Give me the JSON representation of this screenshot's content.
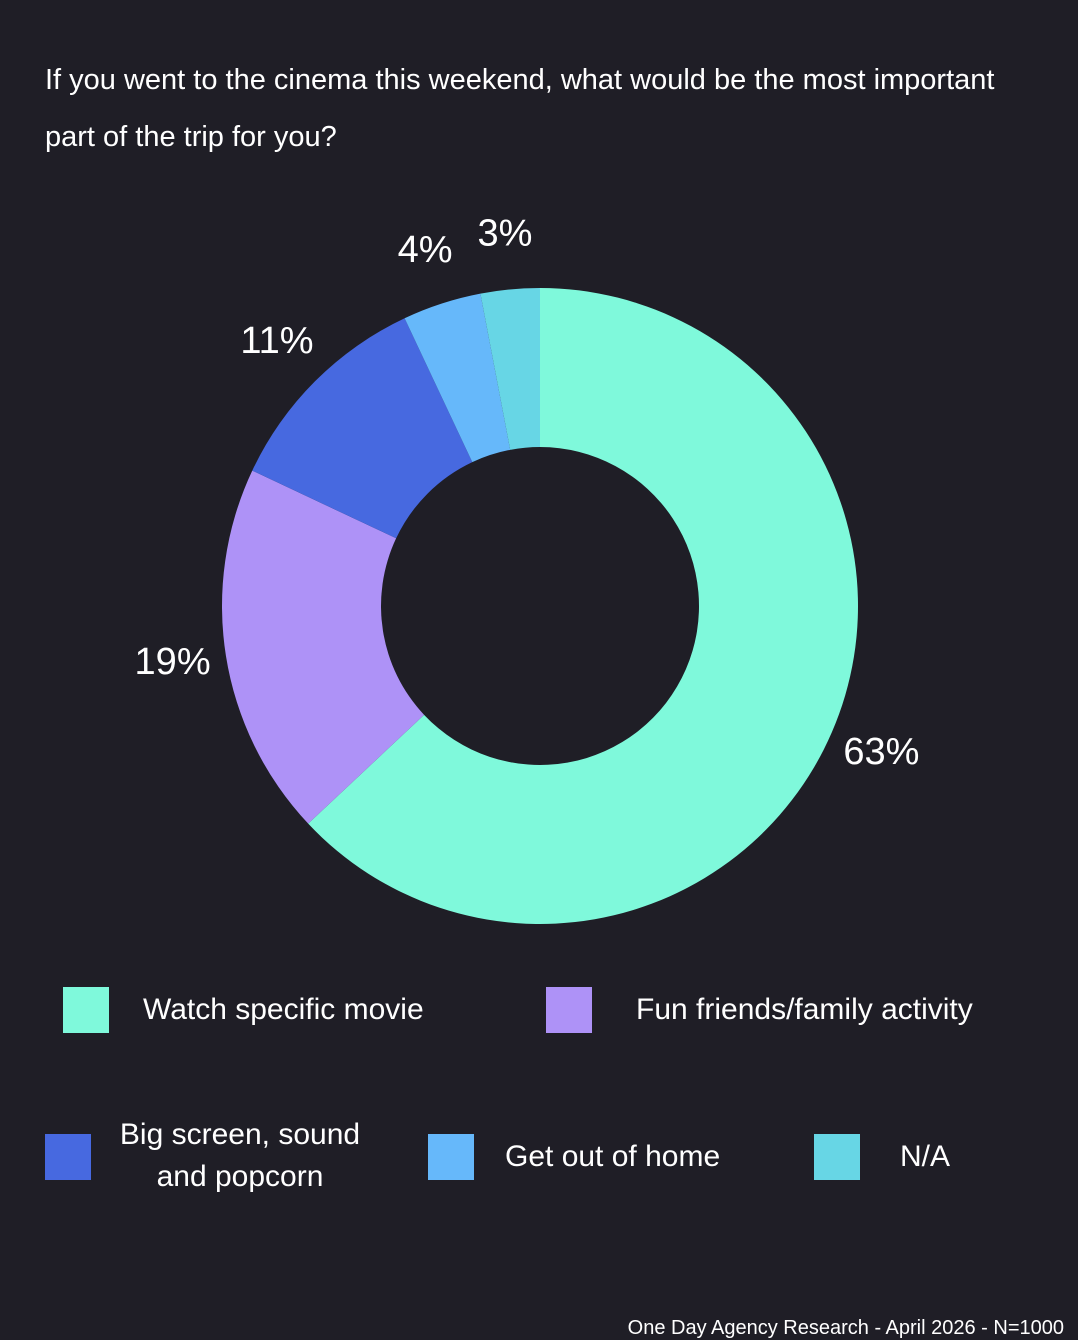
{
  "chart_data": {
    "type": "donut",
    "title": "If you went to the cinema this weekend, what would be the most important part of the trip for you?",
    "categories": [
      "Watch specific movie",
      "Fun friends/family activity",
      "Big screen, sound and popcorn",
      "Get out of home",
      "N/A"
    ],
    "values": [
      63,
      19,
      11,
      4,
      3
    ],
    "value_labels": [
      "63%",
      "19%",
      "11%",
      "4%",
      "3%"
    ],
    "colors": [
      "#7ff9db",
      "#ae92f7",
      "#4769e0",
      "#66b8fa",
      "#67d6e5"
    ],
    "source": "One Day Agency Research - April 2026 - N=1000"
  }
}
